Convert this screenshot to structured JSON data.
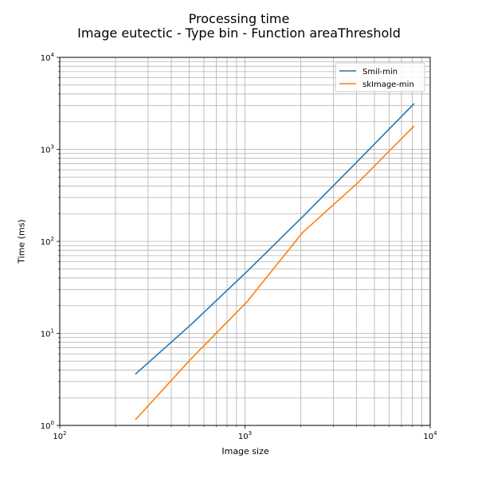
{
  "figure": {
    "title_line1": "Processing time",
    "title_line2": "Image eutectic - Type bin - Function areaThreshold"
  },
  "chart_data": {
    "type": "line",
    "title": "Processing time\nImage eutectic - Type bin - Function areaThreshold",
    "xlabel": "Image size",
    "ylabel": "Time (ms)",
    "xscale": "log",
    "yscale": "log",
    "xlim": [
      100,
      10000
    ],
    "ylim": [
      1,
      10000
    ],
    "grid": "on (major and minor)",
    "legend_position": "top-right",
    "x_tick_labels": [
      {
        "base": "10",
        "exp": "2"
      },
      {
        "base": "10",
        "exp": "3"
      },
      {
        "base": "10",
        "exp": "4"
      }
    ],
    "y_tick_labels": [
      {
        "base": "10",
        "exp": "0"
      },
      {
        "base": "10",
        "exp": "1"
      },
      {
        "base": "10",
        "exp": "2"
      },
      {
        "base": "10",
        "exp": "3"
      },
      {
        "base": "10",
        "exp": "4"
      }
    ],
    "series": [
      {
        "name": "Smil-min",
        "color": "#1f77b4",
        "x": [
          256,
          512,
          1024,
          2048,
          4096,
          8192
        ],
        "y": [
          3.6,
          12.5,
          47,
          185,
          760,
          3150
        ]
      },
      {
        "name": "skImage-min",
        "color": "#ff7f0e",
        "x": [
          256,
          512,
          1024,
          2048,
          4096,
          8192
        ],
        "y": [
          1.15,
          5.3,
          22,
          125,
          440,
          1800
        ]
      }
    ]
  }
}
